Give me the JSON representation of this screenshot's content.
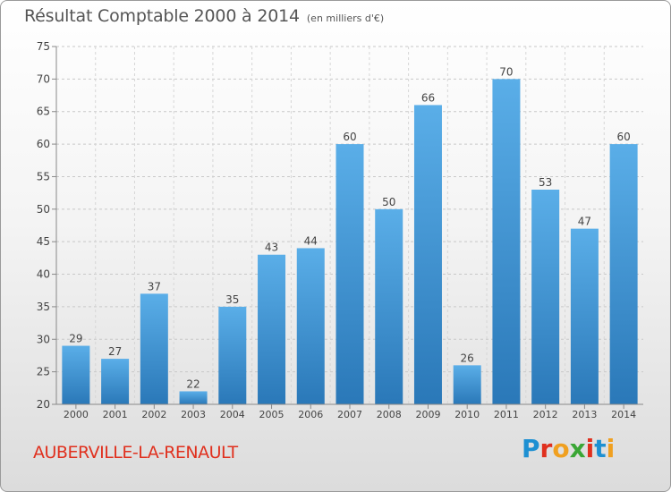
{
  "title": "Résultat Comptable 2000 à 2014",
  "unit": "(en milliers d'€)",
  "place": "AUBERVILLE-LA-RENAULT",
  "logo": {
    "text": "Proxiti",
    "colors": [
      "#1e90d2",
      "#e0301e",
      "#f0a020",
      "#3aa635",
      "#e0301e",
      "#1e90d2",
      "#f0a020"
    ]
  },
  "chart_data": {
    "type": "bar",
    "categories": [
      "2000",
      "2001",
      "2002",
      "2003",
      "2004",
      "2005",
      "2006",
      "2007",
      "2008",
      "2009",
      "2010",
      "2011",
      "2012",
      "2013",
      "2014"
    ],
    "values": [
      29,
      27,
      37,
      22,
      35,
      43,
      44,
      60,
      50,
      66,
      26,
      70,
      53,
      47,
      60
    ],
    "ylim": [
      20,
      75
    ],
    "yticks": [
      20,
      25,
      30,
      35,
      40,
      45,
      50,
      55,
      60,
      65,
      70,
      75
    ],
    "grid": "horizontal dashed",
    "bar_color": "#3d8fd1"
  }
}
